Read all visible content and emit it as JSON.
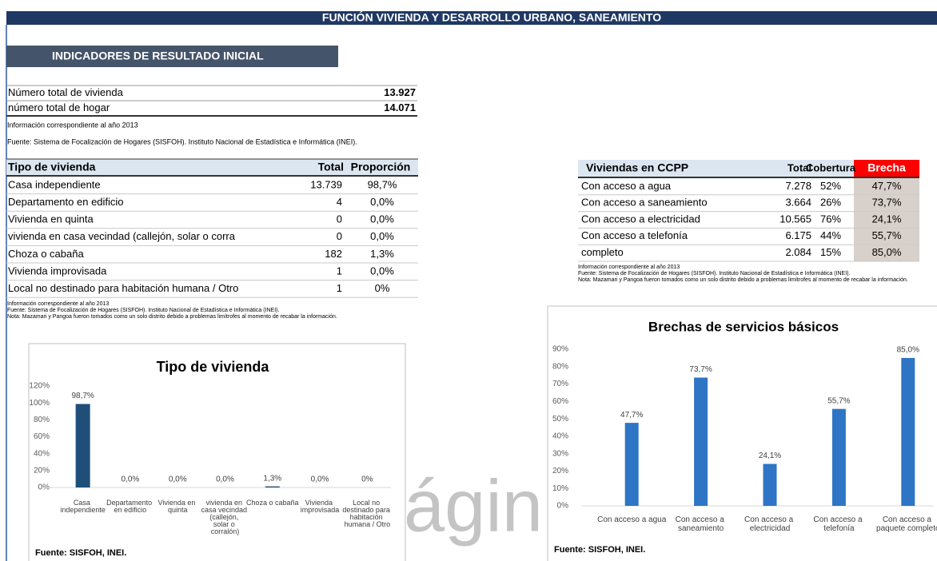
{
  "header": {
    "title": "FUNCIÓN VIVIENDA Y DESARROLLO URBANO, SANEAMIENTO"
  },
  "section": "INDICADORES DE RESULTADO INICIAL",
  "summary": {
    "rows": [
      [
        "Número total de vivienda",
        "13.927"
      ],
      [
        "número total de hogar",
        "14.071"
      ]
    ],
    "notes": [
      "Información correspondiente al año 2013",
      "Fuente: Sistema de Focalización de Hogares (SISFOH). Instituto Nacional de Estadística e Informática (INEI)."
    ]
  },
  "tipo_table": {
    "header": [
      "Tipo de vivienda",
      "Total",
      "Proporción"
    ],
    "rows": [
      [
        "Casa independiente",
        "13.739",
        "98,7%"
      ],
      [
        "Departamento en edificio",
        "4",
        "0,0%"
      ],
      [
        "Vivienda en quinta",
        "0",
        "0,0%"
      ],
      [
        "vivienda en casa vecindad (callejón, solar o corra",
        "0",
        "0,0%"
      ],
      [
        "Choza o cabaña",
        "182",
        "1,3%"
      ],
      [
        "Vivienda improvisada",
        "1",
        "0,0%"
      ],
      [
        "Local no destinado para habitación humana / Otro",
        "1",
        "0%"
      ]
    ],
    "notes": [
      "Información correspondiente al año 2013",
      "Fuente: Sistema de Focalización de Hogares (SISFOH). Instituto Nacional de Estadística e Informática (INEI).",
      "Nota: Mazamari y Pangoa fueron tomados como un solo distrito debido a problemas limítrofes al momento de recabar la información."
    ]
  },
  "ccpp_table": {
    "header": [
      "Viviendas en CCPP",
      "Total",
      "Cobertura",
      "Brecha"
    ],
    "rows": [
      [
        "Con acceso a agua",
        "7.278",
        "52%",
        "47,7%"
      ],
      [
        "Con acceso a saneamiento",
        "3.664",
        "26%",
        "73,7%"
      ],
      [
        "Con acceso a electricidad",
        "10.565",
        "76%",
        "24,1%"
      ],
      [
        "Con acceso a telefonía",
        "6.175",
        "44%",
        "55,7%"
      ],
      [
        "completo",
        "2.084",
        "15%",
        "85,0%"
      ]
    ],
    "notes": [
      "Información correspondiente al año 2013",
      "Fuente: Sistema de Focalización de Hogares (SISFOH). Instituto Nacional de Estadística e Informática (INEI).",
      "Nota: Mazamari y Pangoa fueron tomados como un solo distrito debido a problemas limítrofes al momento de recabar la información."
    ]
  },
  "chart_data": [
    {
      "type": "bar",
      "title": "Tipo de vivienda",
      "color": "#1f4e79",
      "categories": [
        "Casa independiente",
        "Departamento en edificio",
        "Vivienda en quinta",
        "vivienda en casa vecindad (callejón, solar o corralón)",
        "Choza o cabaña",
        "Vivienda improvisada",
        "Local no destinado para habitación humana / Otro"
      ],
      "values": [
        98.7,
        0,
        0,
        0,
        1.3,
        0,
        0
      ],
      "value_labels": [
        "98,7%",
        "0,0%",
        "0,0%",
        "0,0%",
        "1,3%",
        "0,0%",
        "0%"
      ],
      "ylim": [
        0,
        120
      ],
      "yticks": [
        {
          "value": 0,
          "label": "0%"
        },
        {
          "value": 20,
          "label": "20%"
        },
        {
          "value": 40,
          "label": "40%"
        },
        {
          "value": 60,
          "label": "60%"
        },
        {
          "value": 80,
          "label": "80%"
        },
        {
          "value": 100,
          "label": "100%"
        },
        {
          "value": 120,
          "label": "120%"
        }
      ],
      "source": "Fuente: SISFOH, INEI."
    },
    {
      "type": "bar",
      "title": "Brechas de servicios básicos",
      "color": "#2e75c6",
      "categories": [
        "Con acceso a agua",
        "Con acceso a saneamiento",
        "Con acceso a electricidad",
        "Con acceso a telefonía",
        "Con acceso a paquete completo"
      ],
      "values": [
        47.7,
        73.7,
        24.1,
        55.7,
        85.0
      ],
      "value_labels": [
        "47,7%",
        "73,7%",
        "24,1%",
        "55,7%",
        "85,0%"
      ],
      "ylim": [
        0,
        90
      ],
      "yticks": [
        {
          "value": 0,
          "label": "0%"
        },
        {
          "value": 10,
          "label": "10%"
        },
        {
          "value": 20,
          "label": "20%"
        },
        {
          "value": 30,
          "label": "30%"
        },
        {
          "value": 40,
          "label": "40%"
        },
        {
          "value": 50,
          "label": "50%"
        },
        {
          "value": 60,
          "label": "60%"
        },
        {
          "value": 70,
          "label": "70%"
        },
        {
          "value": 80,
          "label": "80%"
        },
        {
          "value": 90,
          "label": "90%"
        }
      ],
      "source": "Fuente: SISFOH, INEI."
    }
  ],
  "watermark": "ágin"
}
